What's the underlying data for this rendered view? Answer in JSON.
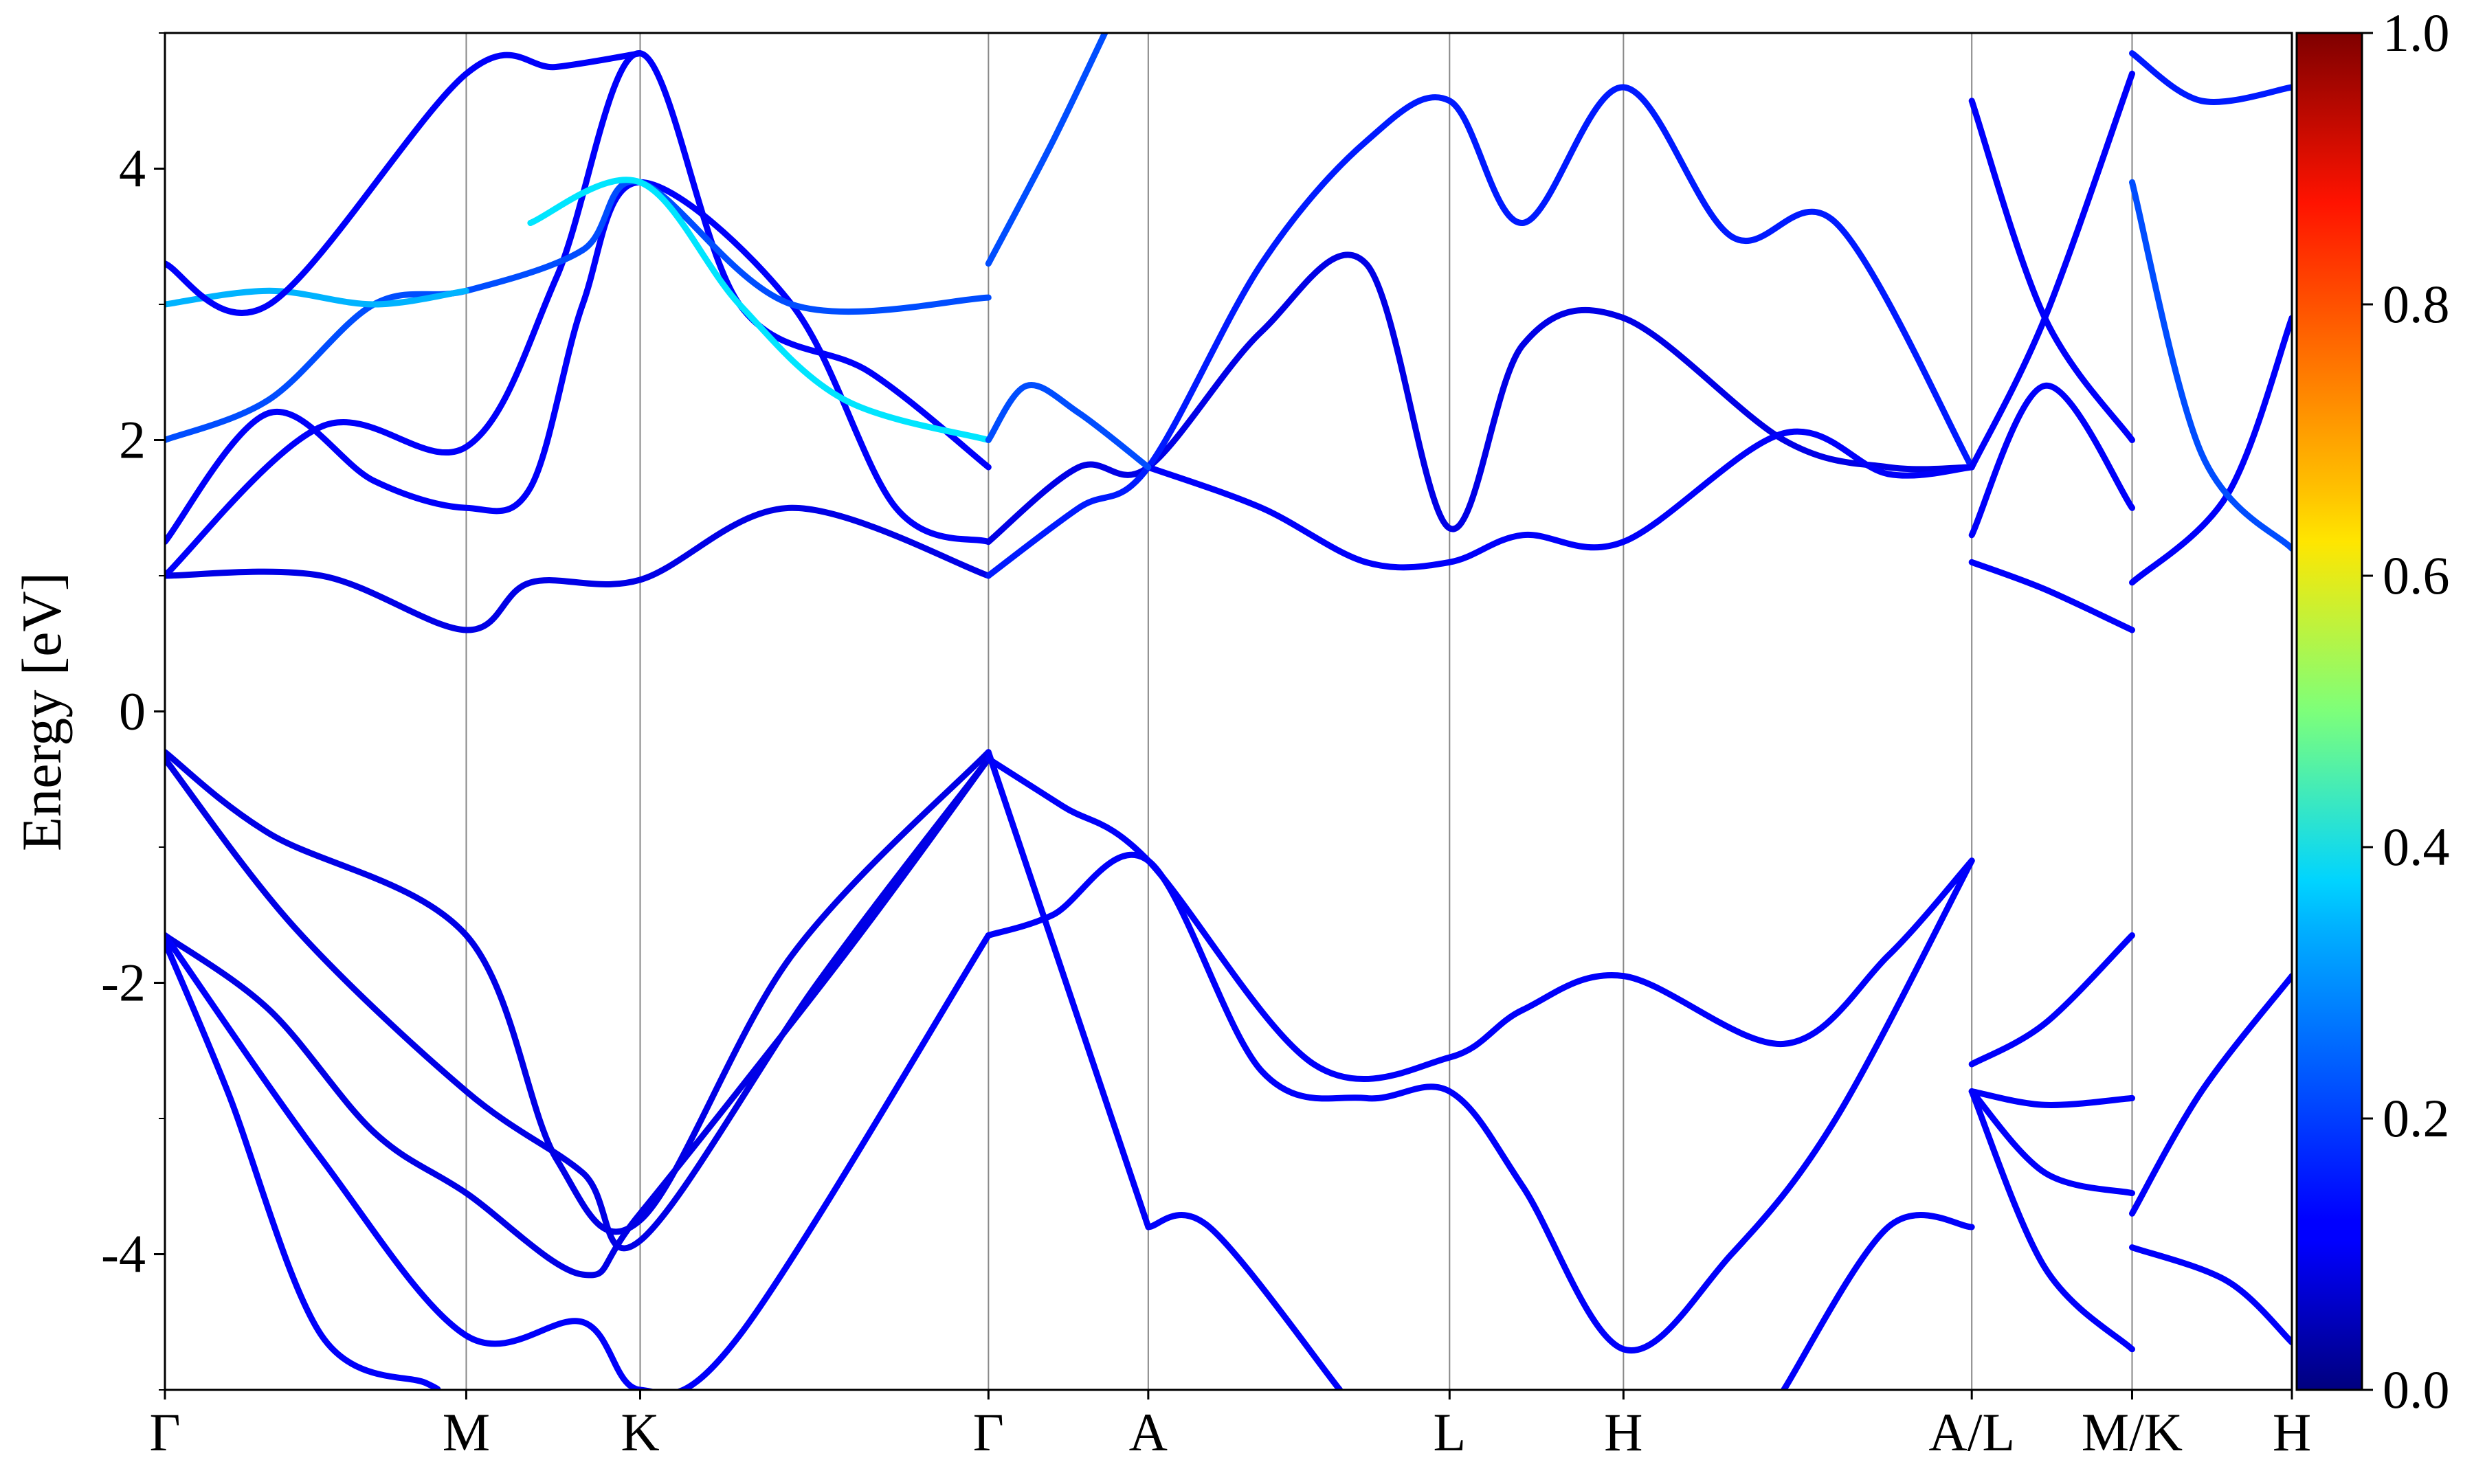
{
  "chart_data": {
    "type": "line",
    "title": "",
    "xlabel": "",
    "ylabel": "Energy [eV]",
    "ylim": [
      -5,
      5
    ],
    "y_ticks": [
      "4",
      "2",
      "0",
      "-2",
      "-4"
    ],
    "y_tick_values": [
      4,
      2,
      0,
      -2,
      -4
    ],
    "minor_y_ticks": [
      -5,
      -3,
      -1,
      1,
      3,
      5
    ],
    "kpath": {
      "labels": [
        "Γ",
        "M",
        "K",
        "Γ",
        "A",
        "L",
        "H",
        "A/L",
        "M/K",
        "H"
      ],
      "positions": [
        0,
        0.577,
        0.91,
        1.577,
        1.883,
        2.46,
        2.793,
        3.46,
        3.767,
        4.073
      ]
    },
    "colorbar": {
      "colormap": "jet",
      "range": [
        0,
        1
      ],
      "tick_labels": [
        "1.0",
        "0.8",
        "0.6",
        "0.4",
        "0.2",
        "0.0"
      ],
      "tick_values": [
        1.0,
        0.8,
        0.6,
        0.4,
        0.2,
        0.0
      ]
    },
    "line_color_value_typical": 0.12,
    "series": [
      {
        "c": 0.1,
        "x": [
          0,
          0.2,
          0.577,
          0.75,
          0.91,
          1.2,
          1.577
        ],
        "y": [
          -0.3,
          -0.9,
          -1.65,
          -3.3,
          -3.75,
          -1.8,
          -0.3
        ]
      },
      {
        "c": 0.1,
        "x": [
          0,
          0.25,
          0.577,
          0.8,
          0.91,
          1.25,
          1.577
        ],
        "y": [
          -0.35,
          -1.6,
          -2.8,
          -3.4,
          -3.9,
          -2.0,
          -0.35
        ]
      },
      {
        "c": 0.1,
        "x": [
          0,
          0.2,
          0.4,
          0.577,
          0.8,
          0.91,
          1.3,
          1.577
        ],
        "y": [
          -1.65,
          -2.2,
          -3.1,
          -3.55,
          -4.15,
          -3.7,
          -1.8,
          -0.35
        ]
      },
      {
        "c": 0.12,
        "x": [
          0,
          0.3,
          0.577,
          0.8,
          0.91,
          1.1,
          1.577
        ],
        "y": [
          -1.65,
          -3.3,
          -4.6,
          -4.5,
          -5.0,
          -4.6,
          -1.65
        ]
      },
      {
        "c": 0.12,
        "x": [
          0,
          0.12,
          0.3,
          0.5,
          0.52
        ],
        "y": [
          -1.7,
          -2.8,
          -4.6,
          -4.95,
          -5.0
        ]
      },
      {
        "c": 0.12,
        "x": [
          1.577,
          1.72,
          1.883,
          2.2,
          2.46,
          2.6,
          2.793,
          3.1,
          3.3,
          3.46
        ],
        "y": [
          -0.35,
          -0.7,
          -1.1,
          -2.6,
          -2.55,
          -2.2,
          -1.95,
          -2.45,
          -1.8,
          -1.1
        ]
      },
      {
        "c": 0.12,
        "x": [
          1.577,
          1.7,
          1.883,
          2.1,
          2.3,
          2.46,
          2.6,
          2.793,
          3.0,
          3.2,
          3.46
        ],
        "y": [
          -1.65,
          -1.5,
          -1.1,
          -2.65,
          -2.85,
          -2.8,
          -3.5,
          -4.7,
          -4.0,
          -3.0,
          -1.1
        ]
      },
      {
        "c": 0.12,
        "x": [
          1.577,
          1.883
        ],
        "y": [
          -0.3,
          -3.8
        ]
      },
      {
        "c": 0.12,
        "x": [
          1.883,
          2.0,
          2.25
        ],
        "y": [
          -3.8,
          -3.8,
          -5.0
        ]
      },
      {
        "c": 0.12,
        "x": [
          3.1,
          3.3,
          3.46
        ],
        "y": [
          -5.0,
          -3.8,
          -3.8
        ]
      },
      {
        "c": 0.12,
        "x": [
          3.46,
          3.6,
          3.767
        ],
        "y": [
          -2.6,
          -2.3,
          -1.65
        ]
      },
      {
        "c": 0.12,
        "x": [
          3.46,
          3.6,
          3.767
        ],
        "y": [
          -2.8,
          -2.9,
          -2.85
        ]
      },
      {
        "c": 0.12,
        "x": [
          3.46,
          3.6,
          3.767
        ],
        "y": [
          -2.8,
          -3.4,
          -3.55
        ]
      },
      {
        "c": 0.12,
        "x": [
          3.46,
          3.6,
          3.767
        ],
        "y": [
          -2.8,
          -4.1,
          -4.7
        ]
      },
      {
        "c": 0.12,
        "x": [
          3.767,
          3.9,
          4.073
        ],
        "y": [
          -3.7,
          -2.8,
          -1.95
        ]
      },
      {
        "c": 0.12,
        "x": [
          3.767,
          3.95,
          4.073
        ],
        "y": [
          -3.95,
          -4.2,
          -4.65
        ]
      },
      {
        "c": 0.1,
        "x": [
          0,
          0.3,
          0.577,
          0.7,
          0.91,
          1.2,
          1.577
        ],
        "y": [
          1.0,
          1.0,
          0.6,
          0.95,
          0.97,
          1.5,
          1.0
        ]
      },
      {
        "c": 0.12,
        "x": [
          0,
          0.2,
          0.4,
          0.577,
          0.7,
          0.8,
          0.91,
          1.2,
          1.4,
          1.577
        ],
        "y": [
          1.25,
          2.2,
          1.7,
          1.5,
          1.65,
          3.0,
          3.9,
          3.0,
          1.5,
          1.25
        ]
      },
      {
        "c": 0.12,
        "x": [
          0,
          0.3,
          0.577,
          0.75,
          0.91,
          1.1,
          1.35,
          1.577
        ],
        "y": [
          1.0,
          2.1,
          1.95,
          3.2,
          4.85,
          3.0,
          2.5,
          1.8
        ]
      },
      {
        "c": 0.2,
        "x": [
          0,
          0.2,
          0.4,
          0.577,
          0.8,
          0.91,
          1.2,
          1.577
        ],
        "y": [
          2.0,
          2.3,
          3.0,
          3.1,
          3.4,
          3.9,
          3.0,
          3.05
        ]
      },
      {
        "c": 0.3,
        "x": [
          0,
          0.2,
          0.4,
          0.577
        ],
        "y": [
          3.0,
          3.1,
          3.0,
          3.1
        ]
      },
      {
        "c": 0.35,
        "x": [
          0.7,
          0.91,
          1.1,
          1.3,
          1.577
        ],
        "y": [
          3.6,
          3.9,
          3.0,
          2.3,
          2.0
        ]
      },
      {
        "c": 0.12,
        "x": [
          0,
          0.2,
          0.577,
          0.75,
          0.91
        ],
        "y": [
          3.3,
          3.0,
          4.7,
          4.75,
          4.85
        ]
      },
      {
        "c": 0.1,
        "x": [
          1.577,
          1.75,
          1.883,
          2.1,
          2.3,
          2.46,
          2.6,
          2.793,
          3.1,
          3.3,
          3.46
        ],
        "y": [
          1.25,
          1.8,
          1.8,
          2.8,
          3.3,
          1.35,
          2.7,
          2.9,
          2.0,
          1.8,
          1.8
        ]
      },
      {
        "c": 0.15,
        "x": [
          1.577,
          1.75,
          1.883,
          2.1,
          2.3,
          2.46,
          2.6,
          2.793,
          3.0,
          3.2,
          3.46
        ],
        "y": [
          1.0,
          1.5,
          1.8,
          3.3,
          4.2,
          4.5,
          3.6,
          4.6,
          3.5,
          3.6,
          1.8
        ]
      },
      {
        "c": 0.12,
        "x": [
          1.883,
          2.1,
          2.3,
          2.46,
          2.6,
          2.793,
          3.1,
          3.3,
          3.46
        ],
        "y": [
          1.8,
          1.5,
          1.1,
          1.1,
          1.3,
          1.25,
          2.05,
          1.75,
          1.8
        ]
      },
      {
        "c": 0.2,
        "x": [
          1.577,
          1.65,
          1.75,
          1.883
        ],
        "y": [
          2.0,
          2.4,
          2.2,
          1.8
        ]
      },
      {
        "c": 0.2,
        "x": [
          1.577,
          1.7,
          1.8
        ],
        "y": [
          3.3,
          4.2,
          5.0
        ]
      },
      {
        "c": 0.12,
        "x": [
          3.46,
          3.6,
          3.767
        ],
        "y": [
          1.1,
          0.9,
          0.6
        ]
      },
      {
        "c": 0.12,
        "x": [
          3.46,
          3.6,
          3.767
        ],
        "y": [
          1.3,
          2.4,
          1.5
        ]
      },
      {
        "c": 0.12,
        "x": [
          3.46,
          3.6,
          3.767
        ],
        "y": [
          4.5,
          2.9,
          2.0
        ]
      },
      {
        "c": 0.12,
        "x": [
          3.46,
          3.6,
          3.767
        ],
        "y": [
          1.8,
          2.9,
          4.7
        ]
      },
      {
        "c": 0.12,
        "x": [
          3.767,
          3.95,
          4.073
        ],
        "y": [
          0.95,
          1.6,
          2.9
        ]
      },
      {
        "c": 0.2,
        "x": [
          3.767,
          3.9,
          4.073
        ],
        "y": [
          3.9,
          1.9,
          1.2
        ]
      },
      {
        "c": 0.15,
        "x": [
          3.767,
          3.9,
          4.073
        ],
        "y": [
          4.85,
          4.5,
          4.6
        ]
      }
    ]
  }
}
